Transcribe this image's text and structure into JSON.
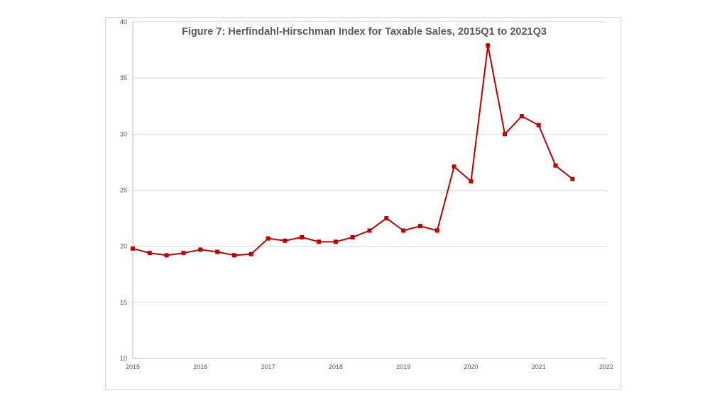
{
  "chart_data": {
    "type": "line",
    "title": "Figure 7: Herfindahl-Hirschman Index for Taxable Sales, 2015Q1 to 2021Q3",
    "xlabel": "",
    "ylabel": "",
    "xlim": [
      2015,
      2022
    ],
    "ylim": [
      10,
      40
    ],
    "x_ticks": [
      "2015",
      "2016",
      "2017",
      "2018",
      "2019",
      "2020",
      "2021",
      "2022"
    ],
    "y_ticks": [
      "10",
      "15",
      "20",
      "25",
      "30",
      "35",
      "40"
    ],
    "grid": "horizontal",
    "legend": "none",
    "series": [
      {
        "color": "#c00000",
        "marker": "square",
        "x": [
          2015.0,
          2015.25,
          2015.5,
          2015.75,
          2016.0,
          2016.25,
          2016.5,
          2016.75,
          2017.0,
          2017.25,
          2017.5,
          2017.75,
          2018.0,
          2018.25,
          2018.5,
          2018.75,
          2019.0,
          2019.25,
          2019.5,
          2019.75,
          2020.0,
          2020.25,
          2020.5,
          2020.75,
          2021.0,
          2021.25,
          2021.5
        ],
        "values": [
          19.8,
          19.4,
          19.2,
          19.4,
          19.7,
          19.5,
          19.2,
          19.3,
          20.7,
          20.5,
          20.8,
          20.4,
          20.4,
          20.8,
          21.4,
          22.5,
          21.4,
          21.8,
          21.4,
          27.1,
          25.8,
          37.9,
          30.0,
          31.6,
          30.8,
          27.2,
          26.0
        ]
      }
    ]
  }
}
